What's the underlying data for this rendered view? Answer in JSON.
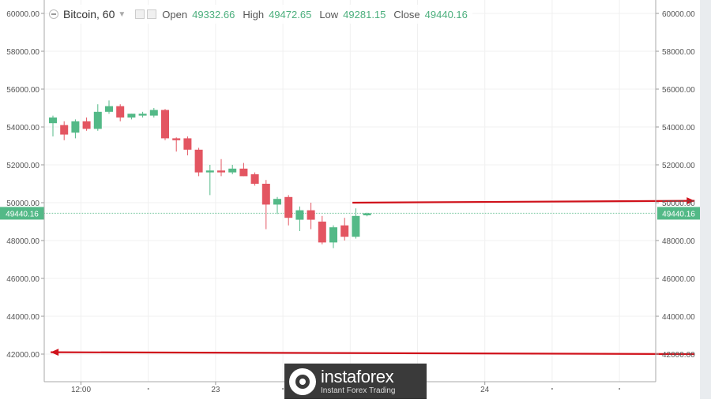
{
  "header": {
    "symbol": "Bitcoin, 60",
    "open_label": "Open",
    "open_value": "49332.66",
    "high_label": "High",
    "high_value": "49472.65",
    "low_label": "Low",
    "low_value": "49281.15",
    "close_label": "Close",
    "close_value": "49440.16"
  },
  "logo": {
    "brand": "instaforex",
    "tagline": "Instant Forex Trading"
  },
  "colors": {
    "up": "#53b987",
    "down": "#e35561",
    "arrow": "#d0121b",
    "grid": "#f0f0f0",
    "axis": "#888888"
  },
  "chart_data": {
    "type": "candlestick",
    "title": "Bitcoin, 60",
    "ylim": [
      41000,
      61000
    ],
    "y_ticks": [
      42000,
      44000,
      46000,
      48000,
      50000,
      52000,
      54000,
      56000,
      58000,
      60000
    ],
    "y_tick_labels": [
      "42000.00",
      "44000.00",
      "46000.00",
      "48000.00",
      "50000.00",
      "52000.00",
      "54000.00",
      "56000.00",
      "58000.00",
      "60000.00"
    ],
    "x_labels": [
      {
        "candle": 2.5,
        "label": "12:00"
      },
      {
        "candle": 14.5,
        "label": "23"
      },
      {
        "candle": 38.5,
        "label": "24"
      }
    ],
    "x_dots": [
      8.5,
      20.5,
      26.5,
      32.5,
      44.5,
      50.5
    ],
    "last_price": 49440.16,
    "last_price_label": "49440.16",
    "candles": [
      {
        "o": 54200,
        "h": 54600,
        "l": 53500,
        "c": 54500
      },
      {
        "o": 54100,
        "h": 54300,
        "l": 53300,
        "c": 53600
      },
      {
        "o": 53700,
        "h": 54400,
        "l": 53400,
        "c": 54300
      },
      {
        "o": 54300,
        "h": 54500,
        "l": 53800,
        "c": 53900
      },
      {
        "o": 53900,
        "h": 55200,
        "l": 53800,
        "c": 54800
      },
      {
        "o": 54800,
        "h": 55400,
        "l": 54700,
        "c": 55100
      },
      {
        "o": 55100,
        "h": 55200,
        "l": 54300,
        "c": 54500
      },
      {
        "o": 54500,
        "h": 54700,
        "l": 54400,
        "c": 54700
      },
      {
        "o": 54600,
        "h": 54800,
        "l": 54500,
        "c": 54700
      },
      {
        "o": 54600,
        "h": 55000,
        "l": 54500,
        "c": 54900
      },
      {
        "o": 54900,
        "h": 54950,
        "l": 53300,
        "c": 53400
      },
      {
        "o": 53400,
        "h": 53450,
        "l": 52700,
        "c": 53300
      },
      {
        "o": 53400,
        "h": 53500,
        "l": 52500,
        "c": 52800
      },
      {
        "o": 52800,
        "h": 52900,
        "l": 51400,
        "c": 51600
      },
      {
        "o": 51600,
        "h": 52000,
        "l": 50400,
        "c": 51700
      },
      {
        "o": 51700,
        "h": 52300,
        "l": 51400,
        "c": 51600
      },
      {
        "o": 51600,
        "h": 52000,
        "l": 51500,
        "c": 51800
      },
      {
        "o": 51800,
        "h": 52100,
        "l": 51400,
        "c": 51400
      },
      {
        "o": 51500,
        "h": 51600,
        "l": 50900,
        "c": 51000
      },
      {
        "o": 51000,
        "h": 51200,
        "l": 48600,
        "c": 49900
      },
      {
        "o": 49900,
        "h": 50300,
        "l": 49400,
        "c": 50200
      },
      {
        "o": 50300,
        "h": 50400,
        "l": 48800,
        "c": 49200
      },
      {
        "o": 49100,
        "h": 49800,
        "l": 48500,
        "c": 49600
      },
      {
        "o": 49600,
        "h": 50000,
        "l": 48600,
        "c": 49100
      },
      {
        "o": 49000,
        "h": 49300,
        "l": 47800,
        "c": 47900
      },
      {
        "o": 47900,
        "h": 48800,
        "l": 47600,
        "c": 48700
      },
      {
        "o": 48800,
        "h": 49200,
        "l": 48000,
        "c": 48200
      },
      {
        "o": 48200,
        "h": 49700,
        "l": 48100,
        "c": 49300
      },
      {
        "o": 49332.66,
        "h": 49472.65,
        "l": 49281.15,
        "c": 49440.16
      }
    ],
    "arrows": [
      {
        "from_candle": 26.7,
        "to_candle": 57.2,
        "y_from": 50000,
        "y_to": 50100,
        "head": "right"
      },
      {
        "from_candle": 57.2,
        "to_candle": -0.2,
        "y_from": 42000,
        "y_to": 42100,
        "head": "left"
      }
    ]
  }
}
